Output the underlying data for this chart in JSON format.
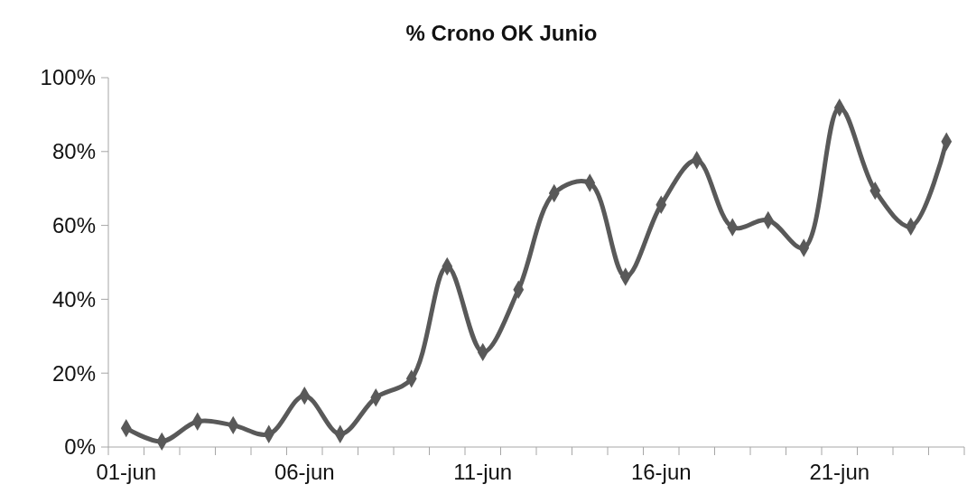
{
  "chart_data": {
    "type": "line",
    "title": "% Crono OK Junio",
    "categories": [
      "01-jun",
      null,
      null,
      null,
      null,
      "06-jun",
      null,
      null,
      null,
      null,
      "11-jun",
      null,
      null,
      null,
      null,
      "16-jun",
      null,
      null,
      null,
      null,
      "21-jun",
      null,
      null,
      null
    ],
    "series": [
      {
        "color": "#595959",
        "values": [
          5.1,
          1.5,
          6.9,
          5.9,
          3.5,
          13.9,
          3.5,
          13.4,
          18.5,
          48.9,
          25.7,
          42.6,
          68.7,
          71.5,
          46.1,
          65.6,
          77.7,
          59.5,
          61.4,
          53.9,
          91.9,
          69.4,
          59.7,
          82.7
        ]
      }
    ],
    "ylim": [
      0,
      100
    ],
    "yticks": [
      {
        "value": 0,
        "label": "0%"
      },
      {
        "value": 20,
        "label": "20%"
      },
      {
        "value": 40,
        "label": "40%"
      },
      {
        "value": 60,
        "label": "60%"
      },
      {
        "value": 80,
        "label": "80%"
      },
      {
        "value": 100,
        "label": "100%"
      }
    ],
    "grid": false,
    "marker": "diamond",
    "line_style": "solid"
  }
}
